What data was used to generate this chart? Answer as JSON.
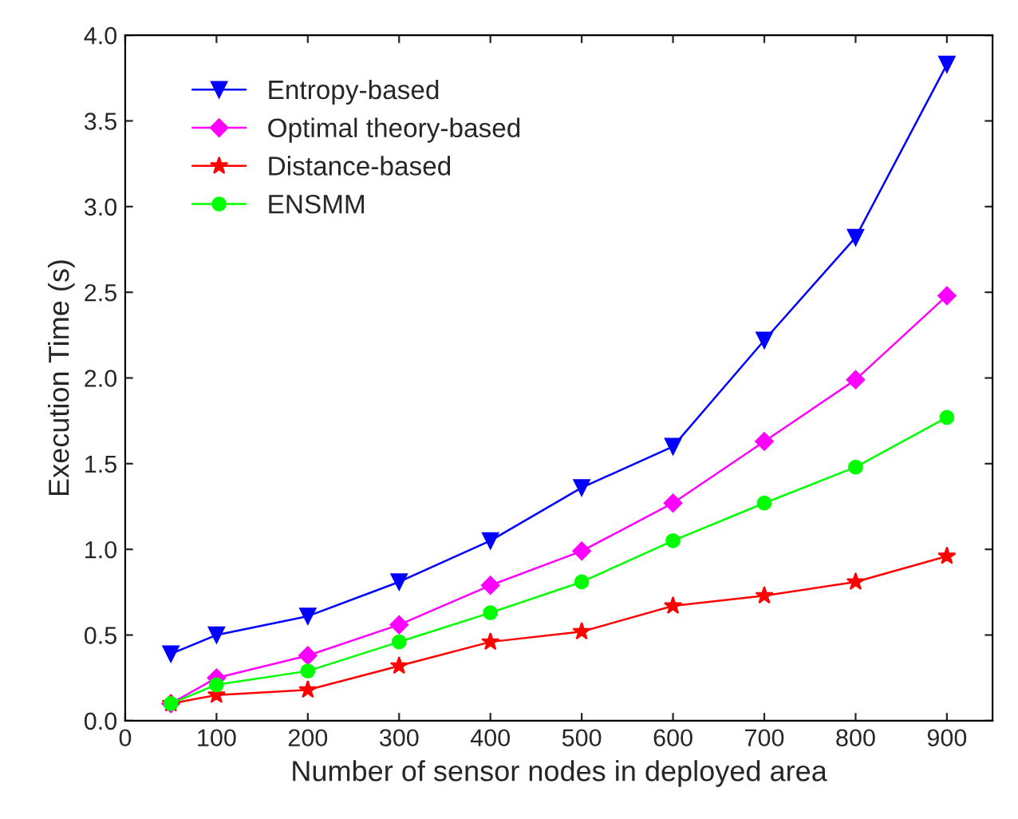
{
  "chart_data": {
    "type": "line",
    "xlabel": "Number of sensor nodes in deployed area",
    "ylabel": "Execution Time (s)",
    "x": [
      50,
      100,
      200,
      300,
      400,
      500,
      600,
      700,
      800,
      900
    ],
    "xlim": [
      0,
      950
    ],
    "xticks": [
      0,
      100,
      200,
      300,
      400,
      500,
      600,
      700,
      800,
      900
    ],
    "ylim": [
      0,
      4.0
    ],
    "yticks": [
      {
        "value": 0,
        "label": "0.0"
      },
      {
        "value": 0.5,
        "label": "0.5"
      },
      {
        "value": 1.0,
        "label": "1.0"
      },
      {
        "value": 1.5,
        "label": "1.5"
      },
      {
        "value": 2.0,
        "label": "2.0"
      },
      {
        "value": 2.5,
        "label": "2.5"
      },
      {
        "value": 3.0,
        "label": "3.0"
      },
      {
        "value": 3.5,
        "label": "3.5"
      },
      {
        "value": 4.0,
        "label": "4.0"
      }
    ],
    "grid": false,
    "legend": "top left",
    "line_style": "solid",
    "series": [
      {
        "name": "Entropy-based",
        "color": "#0000ff",
        "marker": "triangle_down",
        "values": [
          0.39,
          0.5,
          0.61,
          0.81,
          1.05,
          1.36,
          1.6,
          2.22,
          2.82,
          3.83
        ]
      },
      {
        "name": "Optimal theory-based",
        "color": "#ff00ff",
        "marker": "diamond",
        "values": [
          0.1,
          0.25,
          0.38,
          0.56,
          0.79,
          0.99,
          1.27,
          1.63,
          1.99,
          2.48
        ]
      },
      {
        "name": "Distance-based",
        "color": "#ff0000",
        "marker": "star",
        "values": [
          0.1,
          0.15,
          0.18,
          0.32,
          0.46,
          0.52,
          0.67,
          0.73,
          0.81,
          0.96
        ]
      },
      {
        "name": "ENSMM",
        "color": "#00ff00",
        "marker": "circle",
        "values": [
          0.1,
          0.21,
          0.29,
          0.46,
          0.63,
          0.81,
          1.05,
          1.27,
          1.48,
          1.77
        ]
      }
    ]
  }
}
